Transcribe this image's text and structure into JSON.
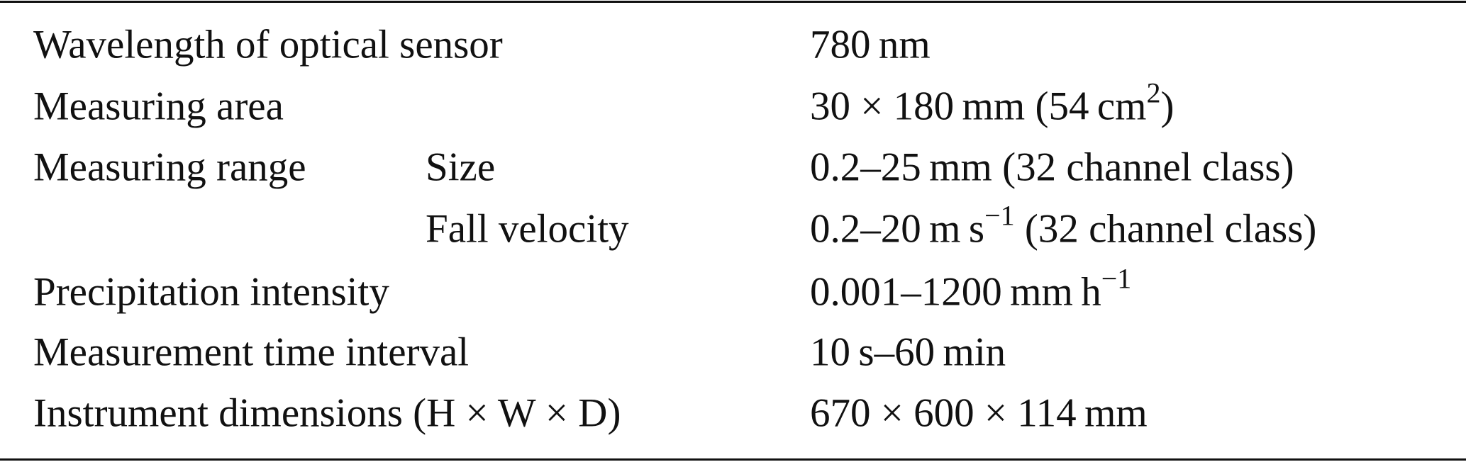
{
  "table": {
    "rows": [
      {
        "label": "Wavelength of optical sensor",
        "value": [
          "780 nm"
        ]
      },
      {
        "label": "Measuring area",
        "value": [
          "30 × 180 mm (54 cm",
          {
            "sup": "2"
          },
          ")"
        ]
      },
      {
        "label": "Measuring range",
        "sublabel": "Size",
        "value": [
          "0.2–25 mm (32 channel class)"
        ]
      },
      {
        "sublabel": "Fall velocity",
        "value": [
          "0.2–20 m s",
          {
            "sup": "−1"
          },
          " (32 channel class)"
        ]
      },
      {
        "label": "Precipitation intensity",
        "value": [
          "0.001–1200 mm h",
          {
            "sup": "−1"
          }
        ]
      },
      {
        "label": "Measurement time interval",
        "value": [
          "10 s–60 min"
        ]
      },
      {
        "label": "Instrument dimensions (H × W × D)",
        "value": [
          "670 × 600 × 114 mm"
        ]
      }
    ]
  }
}
